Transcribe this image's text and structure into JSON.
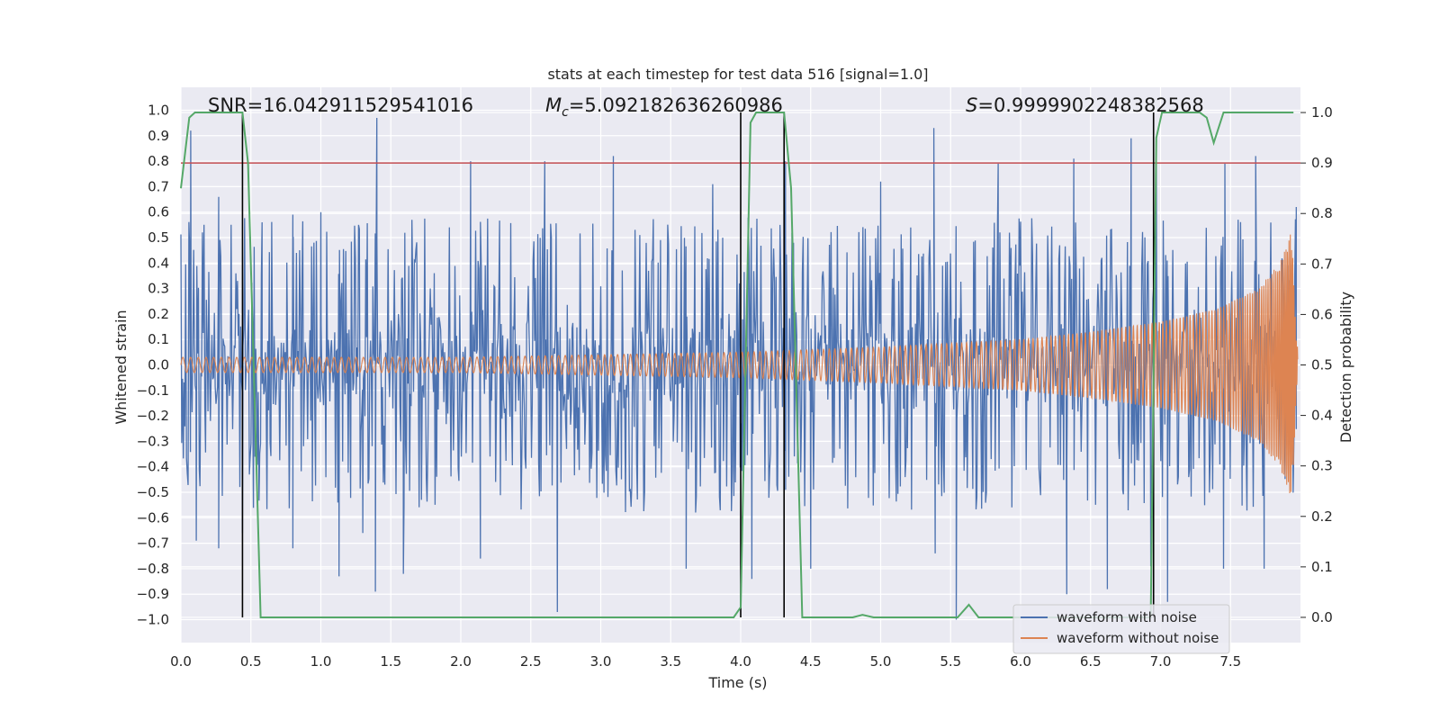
{
  "chart_data": {
    "type": "line",
    "title": "stats at each timestep for test data 516 [signal=1.0]",
    "xlabel": "Time (s)",
    "ylabel": "Whitened strain",
    "y2label": "Detection probability",
    "xlim": [
      0.0,
      8.0
    ],
    "ylim": [
      -1.09,
      1.09
    ],
    "y2lim": [
      -0.05,
      1.05
    ],
    "xticks": [
      "0.0",
      "0.5",
      "1.0",
      "1.5",
      "2.0",
      "2.5",
      "3.0",
      "3.5",
      "4.0",
      "4.5",
      "5.0",
      "5.5",
      "6.0",
      "6.5",
      "7.0",
      "7.5"
    ],
    "yticks": [
      "1.0",
      "0.9",
      "0.8",
      "0.7",
      "0.6",
      "0.5",
      "0.4",
      "0.3",
      "0.2",
      "0.1",
      "0.0",
      "−0.1",
      "−0.2",
      "−0.3",
      "−0.4",
      "−0.5",
      "−0.6",
      "−0.7",
      "−0.8",
      "−0.9",
      "−1.0"
    ],
    "y2ticks": [
      "1.0",
      "0.9",
      "0.8",
      "0.7",
      "0.6",
      "0.5",
      "0.4",
      "0.3",
      "0.2",
      "0.1",
      "0.0"
    ],
    "grid": true,
    "legend_position": "bottom-right",
    "annotations": {
      "snr": "SNR=16.042911529541016",
      "mc_symbol": "M",
      "mc_sub": "c",
      "mc_value": "=5.092182636260986",
      "s_symbol": "S",
      "s_value": "=0.9999902248382568"
    },
    "series": [
      {
        "name": "waveform with noise",
        "color": "#4c72b0",
        "axis": "left",
        "kind": "noisy strain, amplitude envelope ~±0.5 with spikes",
        "spikes": [
          {
            "x": 0.07,
            "y": 0.92
          },
          {
            "x": 0.11,
            "y": -0.69
          },
          {
            "x": 0.27,
            "y": 0.66
          },
          {
            "x": 0.27,
            "y": -0.72
          },
          {
            "x": 0.44,
            "y": -0.66
          },
          {
            "x": 0.58,
            "y": 0.56
          },
          {
            "x": 0.8,
            "y": 0.59
          },
          {
            "x": 0.8,
            "y": -0.72
          },
          {
            "x": 1.0,
            "y": 0.6
          },
          {
            "x": 1.13,
            "y": -0.79
          },
          {
            "x": 1.13,
            "y": -0.83
          },
          {
            "x": 1.3,
            "y": -0.66
          },
          {
            "x": 1.4,
            "y": 0.97
          },
          {
            "x": 1.39,
            "y": -0.89
          },
          {
            "x": 1.59,
            "y": -0.82
          },
          {
            "x": 2.07,
            "y": 0.8
          },
          {
            "x": 2.14,
            "y": -0.76
          },
          {
            "x": 2.6,
            "y": 0.8
          },
          {
            "x": 2.69,
            "y": -0.97
          },
          {
            "x": 3.09,
            "y": 0.82
          },
          {
            "x": 3.61,
            "y": -0.8
          },
          {
            "x": 3.8,
            "y": 0.71
          },
          {
            "x": 4.08,
            "y": -0.84
          },
          {
            "x": 4.32,
            "y": 0.8
          },
          {
            "x": 4.5,
            "y": -0.8
          },
          {
            "x": 5.0,
            "y": 0.72
          },
          {
            "x": 5.38,
            "y": 0.93
          },
          {
            "x": 5.39,
            "y": -0.74
          },
          {
            "x": 5.54,
            "y": -1.0
          },
          {
            "x": 5.84,
            "y": 0.79
          },
          {
            "x": 6.33,
            "y": -0.9
          },
          {
            "x": 6.38,
            "y": 0.81
          },
          {
            "x": 6.62,
            "y": -0.88
          },
          {
            "x": 6.79,
            "y": 0.89
          },
          {
            "x": 6.93,
            "y": -0.79
          },
          {
            "x": 6.97,
            "y": 0.81
          },
          {
            "x": 7.05,
            "y": -0.93
          },
          {
            "x": 7.46,
            "y": 0.79
          },
          {
            "x": 7.45,
            "y": -0.8
          },
          {
            "x": 7.68,
            "y": 0.82
          },
          {
            "x": 7.74,
            "y": -0.8
          },
          {
            "x": 7.97,
            "y": 0.62
          }
        ]
      },
      {
        "name": "waveform without noise",
        "color": "#dd8452",
        "axis": "left",
        "kind": "chirp, envelope grows with time",
        "envelope": [
          {
            "x": 0.0,
            "y": 0.03
          },
          {
            "x": 2.0,
            "y": 0.03
          },
          {
            "x": 4.0,
            "y": 0.05
          },
          {
            "x": 5.0,
            "y": 0.07
          },
          {
            "x": 6.0,
            "y": 0.1
          },
          {
            "x": 6.5,
            "y": 0.13
          },
          {
            "x": 7.0,
            "y": 0.17
          },
          {
            "x": 7.4,
            "y": 0.22
          },
          {
            "x": 7.7,
            "y": 0.3
          },
          {
            "x": 7.85,
            "y": 0.4
          },
          {
            "x": 7.9,
            "y": 0.47
          },
          {
            "x": 7.93,
            "y": 0.52
          },
          {
            "x": 7.95,
            "y": 0.4
          },
          {
            "x": 7.97,
            "y": 0.1
          },
          {
            "x": 8.0,
            "y": 0.0
          }
        ]
      },
      {
        "name": "",
        "color": "#55a868",
        "axis": "right",
        "kind": "detection probability",
        "x": [
          0.0,
          0.06,
          0.1,
          0.44,
          0.48,
          0.57,
          3.95,
          4.0,
          4.07,
          4.11,
          4.31,
          4.36,
          4.44,
          4.8,
          4.87,
          4.95,
          5.55,
          5.63,
          5.7,
          5.77,
          6.93,
          6.97,
          7.01,
          7.1,
          7.28,
          7.33,
          7.38,
          7.45,
          7.5,
          7.95
        ],
        "y": [
          0.85,
          0.99,
          1.0,
          1.0,
          0.9,
          0.0,
          0.0,
          0.02,
          0.98,
          1.0,
          1.0,
          0.85,
          0.0,
          0.0,
          0.005,
          0.0,
          0.0,
          0.025,
          0.0,
          0.0,
          0.0,
          0.95,
          1.0,
          1.0,
          1.0,
          0.99,
          0.94,
          1.0,
          1.0,
          1.0
        ]
      },
      {
        "name": "",
        "color": "#c44e52",
        "axis": "right",
        "kind": "threshold",
        "y": 0.9
      }
    ],
    "vlines": [
      0.44,
      4.0,
      4.31,
      6.95
    ]
  }
}
